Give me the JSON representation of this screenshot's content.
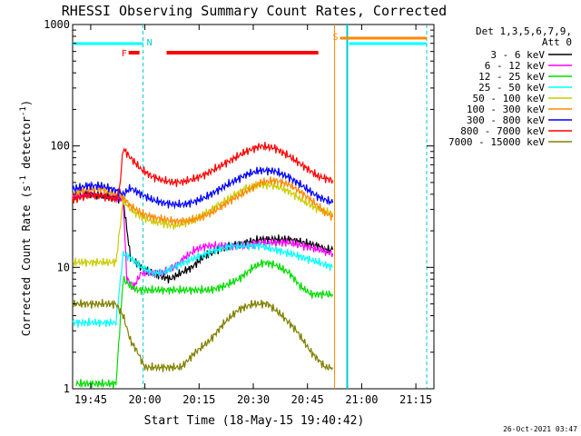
{
  "chart_data": {
    "type": "line",
    "title": "RHESSI Observing Summary Count Rates, Corrected",
    "xlabel": "Start Time (18-May-15 19:40:42)",
    "ylabel_main": "Corrected Count Rate (s",
    "ylabel_sup1": "-1",
    "ylabel_mid": " detector",
    "ylabel_sup2": "-1",
    "ylabel_end": ")",
    "y_scale": "log",
    "ylim": [
      1,
      1000
    ],
    "x_unit": "minutes since 19:40",
    "xlim": [
      0,
      100
    ],
    "x_ticks": [
      {
        "t": 5,
        "label": "19:45"
      },
      {
        "t": 20,
        "label": "20:00"
      },
      {
        "t": 35,
        "label": "20:15"
      },
      {
        "t": 50,
        "label": "20:30"
      },
      {
        "t": 65,
        "label": "20:45"
      },
      {
        "t": 80,
        "label": "21:00"
      },
      {
        "t": 95,
        "label": "21:15"
      }
    ],
    "y_ticks": [
      {
        "v": 1,
        "label": "1"
      },
      {
        "v": 10,
        "label": "10"
      },
      {
        "v": 100,
        "label": "100"
      },
      {
        "v": 1000,
        "label": "1000"
      }
    ],
    "legend": {
      "header1": "Det 1,3,5,6,7,9,",
      "header2": "Att 0",
      "position": "right"
    },
    "series": [
      {
        "name": "3 - 6 keV",
        "color": "#000000",
        "points": [
          [
            0,
            38
          ],
          [
            4,
            40
          ],
          [
            8,
            39
          ],
          [
            12,
            37
          ],
          [
            14,
            36
          ],
          [
            16,
            12
          ],
          [
            19,
            10
          ],
          [
            22,
            9
          ],
          [
            24,
            8.5
          ],
          [
            27,
            8
          ],
          [
            30,
            9
          ],
          [
            33,
            10
          ],
          [
            36,
            12
          ],
          [
            40,
            14
          ],
          [
            44,
            15
          ],
          [
            48,
            16
          ],
          [
            52,
            17
          ],
          [
            56,
            17
          ],
          [
            60,
            17
          ],
          [
            64,
            16
          ],
          [
            68,
            15
          ],
          [
            70,
            14
          ],
          [
            72,
            14
          ]
        ]
      },
      {
        "name": "6 - 12 keV",
        "color": "#ff00ff",
        "points": [
          [
            0,
            38
          ],
          [
            4,
            40
          ],
          [
            8,
            39
          ],
          [
            12,
            37
          ],
          [
            14,
            36
          ],
          [
            15,
            8
          ],
          [
            17,
            7
          ],
          [
            19,
            9
          ],
          [
            22,
            9
          ],
          [
            25,
            9
          ],
          [
            28,
            10
          ],
          [
            31,
            12
          ],
          [
            34,
            14
          ],
          [
            37,
            15
          ],
          [
            40,
            15
          ],
          [
            44,
            15
          ],
          [
            48,
            15
          ],
          [
            52,
            16
          ],
          [
            56,
            16
          ],
          [
            60,
            16
          ],
          [
            64,
            15
          ],
          [
            68,
            14
          ],
          [
            72,
            13
          ]
        ]
      },
      {
        "name": "12 - 25 keV",
        "color": "#00dd00",
        "points": [
          [
            1,
            1.1
          ],
          [
            4,
            1.1
          ],
          [
            8,
            1.1
          ],
          [
            12,
            1.1
          ],
          [
            14,
            8
          ],
          [
            16,
            7
          ],
          [
            18,
            6.5
          ],
          [
            22,
            6.5
          ],
          [
            26,
            6.5
          ],
          [
            30,
            6.5
          ],
          [
            34,
            6.5
          ],
          [
            38,
            6.5
          ],
          [
            42,
            7
          ],
          [
            46,
            8
          ],
          [
            50,
            10
          ],
          [
            53,
            11
          ],
          [
            56,
            10.5
          ],
          [
            60,
            9
          ],
          [
            63,
            7
          ],
          [
            66,
            6
          ],
          [
            69,
            6
          ],
          [
            72,
            6
          ]
        ]
      },
      {
        "name": "25 - 50 keV",
        "color": "#00ffff",
        "points": [
          [
            0,
            3.5
          ],
          [
            4,
            3.5
          ],
          [
            8,
            3.5
          ],
          [
            12,
            3.5
          ],
          [
            14,
            13
          ],
          [
            16,
            12
          ],
          [
            19,
            10
          ],
          [
            22,
            9
          ],
          [
            25,
            9
          ],
          [
            28,
            10
          ],
          [
            31,
            11
          ],
          [
            34,
            12
          ],
          [
            37,
            13
          ],
          [
            40,
            14
          ],
          [
            44,
            15
          ],
          [
            48,
            15
          ],
          [
            52,
            15
          ],
          [
            56,
            14
          ],
          [
            60,
            13
          ],
          [
            64,
            12
          ],
          [
            68,
            11
          ],
          [
            72,
            10
          ]
        ]
      },
      {
        "name": "50 - 100 keV",
        "color": "#cccc00",
        "points": [
          [
            0,
            11
          ],
          [
            4,
            11
          ],
          [
            8,
            11
          ],
          [
            12,
            11
          ],
          [
            14,
            36
          ],
          [
            16,
            30
          ],
          [
            19,
            26
          ],
          [
            22,
            24
          ],
          [
            25,
            23
          ],
          [
            28,
            22
          ],
          [
            31,
            23
          ],
          [
            34,
            25
          ],
          [
            37,
            28
          ],
          [
            40,
            32
          ],
          [
            44,
            38
          ],
          [
            48,
            45
          ],
          [
            52,
            48
          ],
          [
            56,
            47
          ],
          [
            60,
            42
          ],
          [
            64,
            35
          ],
          [
            68,
            30
          ],
          [
            72,
            28
          ]
        ]
      },
      {
        "name": "100 - 300 keV",
        "color": "#ff8800",
        "points": [
          [
            0,
            40
          ],
          [
            4,
            44
          ],
          [
            8,
            44
          ],
          [
            12,
            40
          ],
          [
            14,
            38
          ],
          [
            16,
            32
          ],
          [
            19,
            28
          ],
          [
            22,
            26
          ],
          [
            25,
            25
          ],
          [
            28,
            24
          ],
          [
            31,
            24
          ],
          [
            34,
            25
          ],
          [
            37,
            27
          ],
          [
            40,
            30
          ],
          [
            44,
            36
          ],
          [
            48,
            42
          ],
          [
            52,
            50
          ],
          [
            56,
            52
          ],
          [
            60,
            48
          ],
          [
            64,
            40
          ],
          [
            68,
            32
          ],
          [
            70,
            28
          ],
          [
            72,
            26
          ]
        ]
      },
      {
        "name": "300 - 800 keV",
        "color": "#0000ff",
        "points": [
          [
            0,
            44
          ],
          [
            4,
            47
          ],
          [
            8,
            47
          ],
          [
            12,
            43
          ],
          [
            14,
            40
          ],
          [
            16,
            45
          ],
          [
            19,
            40
          ],
          [
            22,
            36
          ],
          [
            25,
            34
          ],
          [
            28,
            33
          ],
          [
            31,
            33
          ],
          [
            34,
            35
          ],
          [
            37,
            38
          ],
          [
            40,
            43
          ],
          [
            44,
            50
          ],
          [
            48,
            58
          ],
          [
            52,
            63
          ],
          [
            56,
            62
          ],
          [
            60,
            55
          ],
          [
            64,
            46
          ],
          [
            68,
            38
          ],
          [
            72,
            34
          ]
        ]
      },
      {
        "name": "800 - 7000 keV",
        "color": "#ff0000",
        "points": [
          [
            0,
            36
          ],
          [
            4,
            39
          ],
          [
            8,
            39
          ],
          [
            12,
            36
          ],
          [
            13,
            45
          ],
          [
            14,
            95
          ],
          [
            16,
            80
          ],
          [
            19,
            64
          ],
          [
            22,
            56
          ],
          [
            25,
            52
          ],
          [
            28,
            50
          ],
          [
            31,
            51
          ],
          [
            34,
            54
          ],
          [
            37,
            59
          ],
          [
            40,
            66
          ],
          [
            44,
            77
          ],
          [
            48,
            90
          ],
          [
            52,
            100
          ],
          [
            56,
            96
          ],
          [
            60,
            82
          ],
          [
            64,
            68
          ],
          [
            68,
            56
          ],
          [
            72,
            52
          ]
        ]
      },
      {
        "name": "7000 - 15000 keV",
        "color": "#808000",
        "points": [
          [
            0,
            5
          ],
          [
            4,
            5
          ],
          [
            8,
            5
          ],
          [
            12,
            5
          ],
          [
            14,
            4
          ],
          [
            16,
            2.5
          ],
          [
            18,
            2
          ],
          [
            20,
            1.5
          ],
          [
            22,
            1.5
          ],
          [
            26,
            1.5
          ],
          [
            30,
            1.5
          ],
          [
            34,
            2
          ],
          [
            38,
            2.5
          ],
          [
            42,
            3.5
          ],
          [
            46,
            4.5
          ],
          [
            50,
            5
          ],
          [
            54,
            5
          ],
          [
            58,
            4
          ],
          [
            62,
            3
          ],
          [
            66,
            2
          ],
          [
            70,
            1.5
          ],
          [
            72,
            1.5
          ]
        ]
      }
    ],
    "annotations": {
      "N_label": "N",
      "F_label": "F",
      "S_label": "S",
      "night_bar": [
        [
          0,
          19.5
        ]
      ],
      "night_bar_2": [
        [
          76.5,
          98
        ]
      ],
      "flare_bars": [
        [
          15.5,
          18.5
        ],
        [
          26,
          68
        ]
      ],
      "saa_bar": [
        [
          74,
          98
        ]
      ],
      "night_lines": [
        19.5,
        98
      ],
      "data_gap": [
        72.5,
        76
      ]
    }
  },
  "footer_date": "26-Oct-2021 03:47"
}
